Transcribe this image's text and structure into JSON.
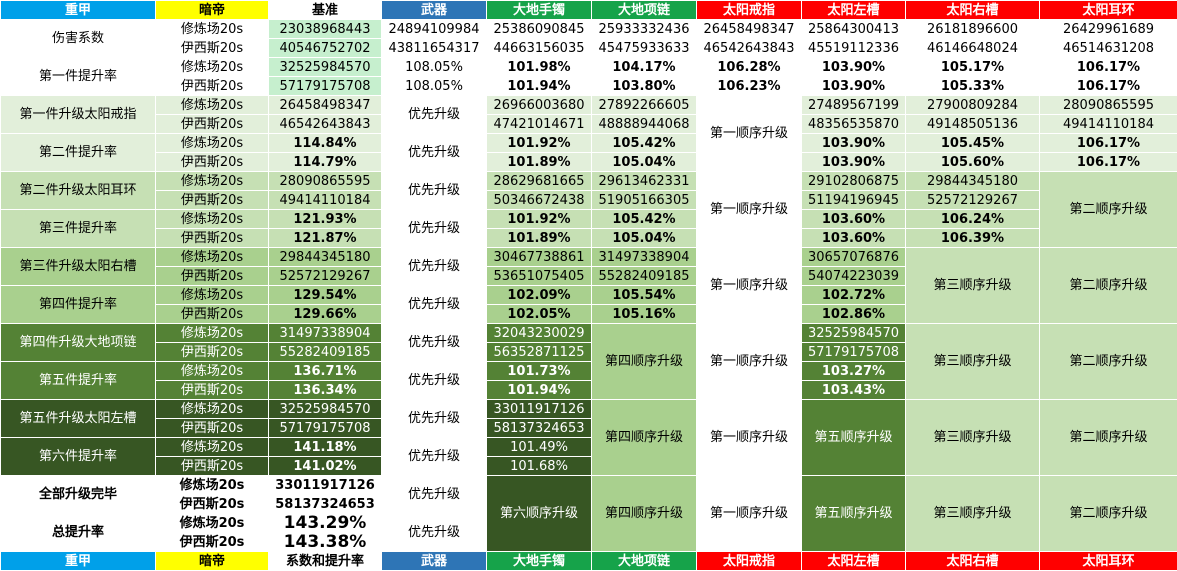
{
  "header_row": [
    "重甲",
    "暗帝",
    "基准",
    "武器",
    "大地手镯",
    "大地项链",
    "太阳戒指",
    "太阳左槽",
    "太阳右槽",
    "太阳耳环"
  ],
  "footer_row": [
    "重甲",
    "暗帝",
    "系数和提升率",
    "武器",
    "大地手镯",
    "大地项链",
    "太阳戒指",
    "太阳左槽",
    "太阳右槽",
    "太阳耳环"
  ],
  "labels": {
    "damage_coef": "伤害系数",
    "up1_rate": "第一件提升率",
    "up1_item": "第一件升级太阳戒指",
    "up2_rate": "第二件提升率",
    "up2_item": "第二件升级太阳耳环",
    "up3_rate": "第三件提升率",
    "up3_item": "第三件升级太阳右槽",
    "up4_rate": "第四件提升率",
    "up4_item": "第四件升级大地项链",
    "up5_rate": "第五件提升率",
    "up5_item": "第五件升级太阳左槽",
    "up6_rate": "第六件提升率",
    "all_done": "全部升级完毕",
    "total_rate": "总提升率",
    "xlc": "修炼场20s",
    "yxs": "伊西斯20s",
    "priority": "优先升级",
    "order1": "第一顺序升级",
    "order2": "第二顺序升级",
    "order3": "第三顺序升级",
    "order4": "第四顺序升级",
    "order5": "第五顺序升级",
    "order6": "第六顺序升级"
  },
  "cells": {
    "r1": [
      "23038968443",
      "24894109984",
      "25386090845",
      "25933332436",
      "26458498347",
      "25864300413",
      "26181896600",
      "26429961689"
    ],
    "r2": [
      "40546752702",
      "43811654317",
      "44663156035",
      "45475933633",
      "46542643843",
      "45519112336",
      "46146648024",
      "46514631208"
    ],
    "r3": [
      "32525984570",
      "108.05%",
      "101.98%",
      "104.17%",
      "106.28%",
      "103.90%",
      "105.17%",
      "106.17%"
    ],
    "r4": [
      "57179175708",
      "108.05%",
      "101.94%",
      "103.80%",
      "106.23%",
      "103.90%",
      "105.33%",
      "106.17%"
    ],
    "r5": [
      "26458498347",
      "26966003680",
      "27892266605",
      "27489567199",
      "27900809284",
      "28090865595"
    ],
    "r6": [
      "46542643843",
      "47421014671",
      "48888944068",
      "48356535870",
      "49148505136",
      "49414110184"
    ],
    "r7": [
      "114.84%",
      "101.92%",
      "105.42%",
      "103.90%",
      "105.45%",
      "106.17%"
    ],
    "r8": [
      "114.79%",
      "101.89%",
      "105.04%",
      "103.90%",
      "105.60%",
      "106.17%"
    ],
    "r9": [
      "28090865595",
      "28629681665",
      "29613462331",
      "29102806875",
      "29844345180"
    ],
    "r10": [
      "49414110184",
      "50346672438",
      "51905166305",
      "51194196945",
      "52572129267"
    ],
    "r11": [
      "121.93%",
      "101.92%",
      "105.42%",
      "103.60%",
      "106.24%"
    ],
    "r12": [
      "121.87%",
      "101.89%",
      "105.04%",
      "103.60%",
      "106.39%"
    ],
    "r13": [
      "29844345180",
      "30467738861",
      "31497338904",
      "30657076876"
    ],
    "r14": [
      "52572129267",
      "53651075405",
      "55282409185",
      "54074223039"
    ],
    "r15": [
      "129.54%",
      "102.09%",
      "105.54%",
      "102.72%"
    ],
    "r16": [
      "129.66%",
      "102.05%",
      "105.16%",
      "102.86%"
    ],
    "r17": [
      "31497338904",
      "32043230029",
      "32525984570"
    ],
    "r18": [
      "55282409185",
      "56352871125",
      "57179175708"
    ],
    "r19": [
      "136.71%",
      "101.73%",
      "103.27%"
    ],
    "r20": [
      "136.34%",
      "101.94%",
      "103.43%"
    ],
    "r21": [
      "32525984570",
      "33011917126"
    ],
    "r22": [
      "57179175708",
      "58137324653"
    ],
    "r23": [
      "141.18%",
      "101.49%"
    ],
    "r24": [
      "141.02%",
      "101.68%"
    ],
    "r25": [
      "33011917126"
    ],
    "r26": [
      "58137324653"
    ],
    "r27": [
      "143.29%"
    ],
    "r28": [
      "143.38%"
    ]
  },
  "colors": {
    "blue": "#00a0e9",
    "yellow": "#ffff00",
    "navy": "#2e75b6",
    "green": "#16a34a",
    "red": "#ff0000",
    "light_green": "#c6e0b4",
    "very_light_green": "#e2efda",
    "mid_green": "#a9d08e",
    "dark_green": "#548235",
    "darkest_green": "#375623"
  }
}
